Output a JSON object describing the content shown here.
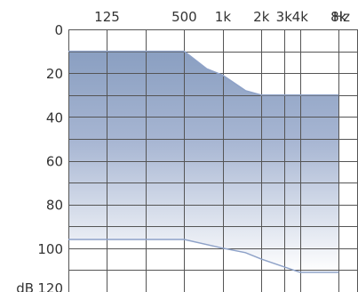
{
  "chart_data": {
    "type": "area",
    "title": "",
    "x_unit": "Hz",
    "y_unit": "dB",
    "x_ticks": [
      {
        "label": "125",
        "value": 125
      },
      {
        "label": "500",
        "value": 500
      },
      {
        "label": "1k",
        "value": 1000
      },
      {
        "label": "2k",
        "value": 2000
      },
      {
        "label": "3k",
        "value": 3000
      },
      {
        "label": "4k",
        "value": 4000
      },
      {
        "label": "8k",
        "value": 8000
      }
    ],
    "y_ticks": [
      {
        "label": "0",
        "value": 0
      },
      {
        "label": "20",
        "value": 20
      },
      {
        "label": "40",
        "value": 40
      },
      {
        "label": "60",
        "value": 60
      },
      {
        "label": "80",
        "value": 80
      },
      {
        "label": "100",
        "value": 100
      },
      {
        "label": "120",
        "value": 120
      }
    ],
    "xlim": [
      62.5,
      11314
    ],
    "ylim": [
      0,
      120
    ],
    "x_scale": "log2",
    "y_inverted": true,
    "grid": true,
    "series": [
      {
        "points": [
          {
            "x": 62.5,
            "y": 10
          },
          {
            "x": 500,
            "y": 10
          },
          {
            "x": 750,
            "y": 18
          },
          {
            "x": 1000,
            "y": 21
          },
          {
            "x": 1500,
            "y": 28
          },
          {
            "x": 2000,
            "y": 30
          },
          {
            "x": 8000,
            "y": 30
          }
        ]
      },
      {
        "points": [
          {
            "x": 62.5,
            "y": 96
          },
          {
            "x": 500,
            "y": 96
          },
          {
            "x": 1000,
            "y": 100
          },
          {
            "x": 1500,
            "y": 102
          },
          {
            "x": 2000,
            "y": 105
          },
          {
            "x": 4000,
            "y": 111
          },
          {
            "x": 8000,
            "y": 111
          }
        ]
      }
    ],
    "fill_colors": {
      "top": "#8a9fc1",
      "mid": "#a6b5d2",
      "bottom": "#ffffff"
    },
    "line_color": "#8ea2c8"
  }
}
